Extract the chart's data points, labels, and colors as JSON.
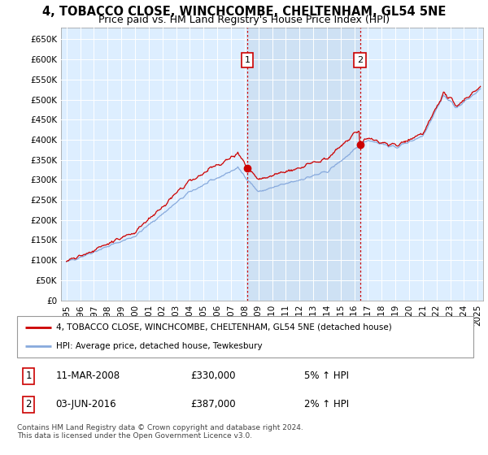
{
  "title": "4, TOBACCO CLOSE, WINCHCOMBE, CHELTENHAM, GL54 5NE",
  "subtitle": "Price paid vs. HM Land Registry's House Price Index (HPI)",
  "title_fontsize": 10.5,
  "subtitle_fontsize": 9,
  "ylim": [
    0,
    680000
  ],
  "yticks": [
    0,
    50000,
    100000,
    150000,
    200000,
    250000,
    300000,
    350000,
    400000,
    450000,
    500000,
    550000,
    600000,
    650000
  ],
  "ytick_labels": [
    "£0",
    "£50K",
    "£100K",
    "£150K",
    "£200K",
    "£250K",
    "£300K",
    "£350K",
    "£400K",
    "£450K",
    "£500K",
    "£550K",
    "£600K",
    "£650K"
  ],
  "xlim_start": 1994.6,
  "xlim_end": 2025.4,
  "xtick_years": [
    1995,
    1996,
    1997,
    1998,
    1999,
    2000,
    2001,
    2002,
    2003,
    2004,
    2005,
    2006,
    2007,
    2008,
    2009,
    2010,
    2011,
    2012,
    2013,
    2014,
    2015,
    2016,
    2017,
    2018,
    2019,
    2020,
    2021,
    2022,
    2023,
    2024,
    2025
  ],
  "property_color": "#cc0000",
  "hpi_color": "#88aadd",
  "vline_color": "#cc0000",
  "background_color": "#ffffff",
  "plot_bg_color": "#ddeeff",
  "shade_between_color": "#c8dcf0",
  "grid_color": "#ffffff",
  "sale1_x": 2008.19,
  "sale1_y": 330000,
  "sale1_label": "1",
  "sale2_x": 2016.42,
  "sale2_y": 387000,
  "sale2_label": "2",
  "legend_line1": "4, TOBACCO CLOSE, WINCHCOMBE, CHELTENHAM, GL54 5NE (detached house)",
  "legend_line2": "HPI: Average price, detached house, Tewkesbury",
  "table_row1_num": "1",
  "table_row1_date": "11-MAR-2008",
  "table_row1_price": "£330,000",
  "table_row1_hpi": "5% ↑ HPI",
  "table_row2_num": "2",
  "table_row2_date": "03-JUN-2016",
  "table_row2_price": "£387,000",
  "table_row2_hpi": "2% ↑ HPI",
  "footer": "Contains HM Land Registry data © Crown copyright and database right 2024.\nThis data is licensed under the Open Government Licence v3.0."
}
